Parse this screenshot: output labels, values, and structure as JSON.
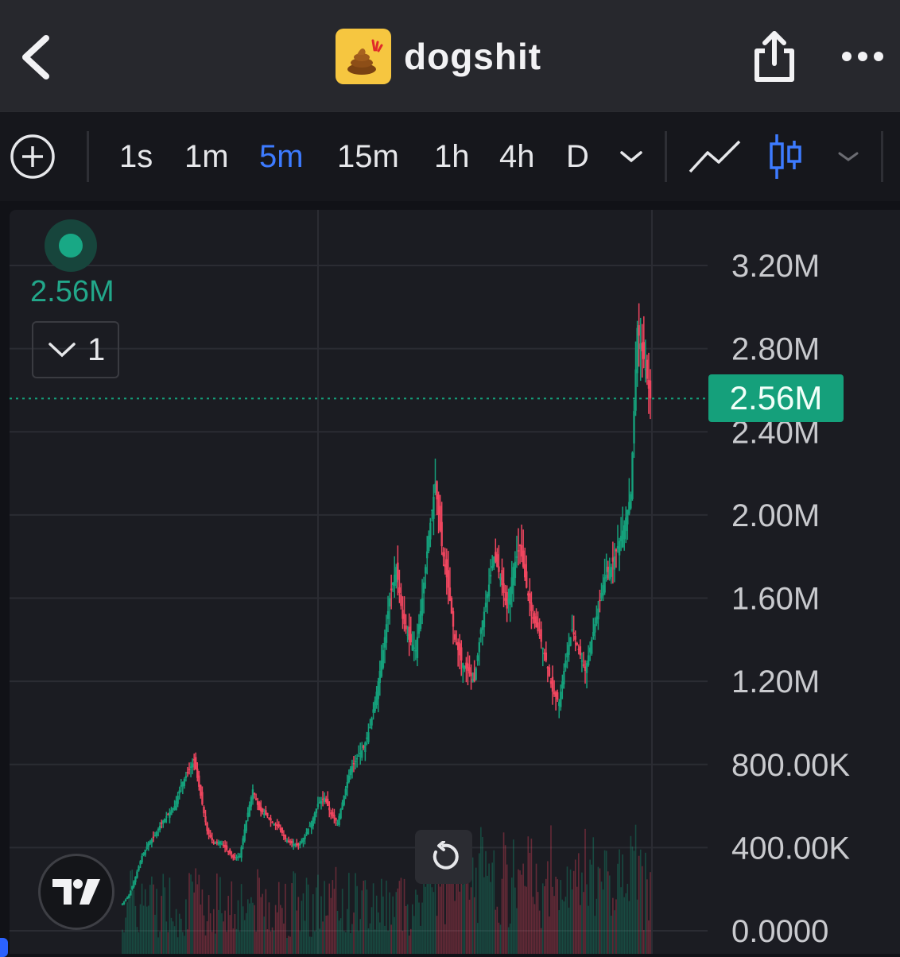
{
  "header": {
    "title": "dogshit",
    "icon": "poop-emoji-icon"
  },
  "toolbar": {
    "intervals": [
      "1s",
      "1m",
      "5m",
      "15m",
      "1h",
      "4h",
      "D"
    ],
    "active_interval": "5m"
  },
  "legend": {
    "value": "2.56M",
    "collapse_count": "1"
  },
  "colors": {
    "up": "#15a07b",
    "down": "#f0465f",
    "accent": "#3d7bff",
    "background": "#1b1c22"
  },
  "current_price_label": "2.56M",
  "chart_data": {
    "type": "candlestick",
    "y_axis_ticks": [
      "3.20M",
      "2.80M",
      "2.40M",
      "2.00M",
      "1.60M",
      "1.20M",
      "800.00K",
      "400.00K",
      "0.0000"
    ],
    "ylim": [
      0,
      3200000
    ],
    "current_price": 2560000,
    "current_price_text": "2.56M",
    "grid": true,
    "close_series": [
      130000,
      170000,
      260000,
      360000,
      420000,
      460000,
      520000,
      560000,
      600000,
      700000,
      760000,
      820000,
      650000,
      480000,
      420000,
      430000,
      390000,
      350000,
      360000,
      530000,
      680000,
      580000,
      560000,
      520000,
      500000,
      440000,
      420000,
      410000,
      460000,
      520000,
      610000,
      640000,
      560000,
      520000,
      650000,
      780000,
      830000,
      880000,
      980000,
      1150000,
      1350000,
      1600000,
      1750000,
      1500000,
      1400000,
      1350000,
      1600000,
      1900000,
      2150000,
      1850000,
      1650000,
      1400000,
      1300000,
      1250000,
      1200000,
      1450000,
      1620000,
      1800000,
      1700000,
      1550000,
      1750000,
      1850000,
      1650000,
      1500000,
      1420000,
      1300000,
      1150000,
      1100000,
      1300000,
      1450000,
      1350000,
      1250000,
      1400000,
      1550000,
      1700000,
      1750000,
      1850000,
      1950000,
      2100000,
      2900000,
      2750000,
      2560000
    ],
    "volume_note": ""
  }
}
